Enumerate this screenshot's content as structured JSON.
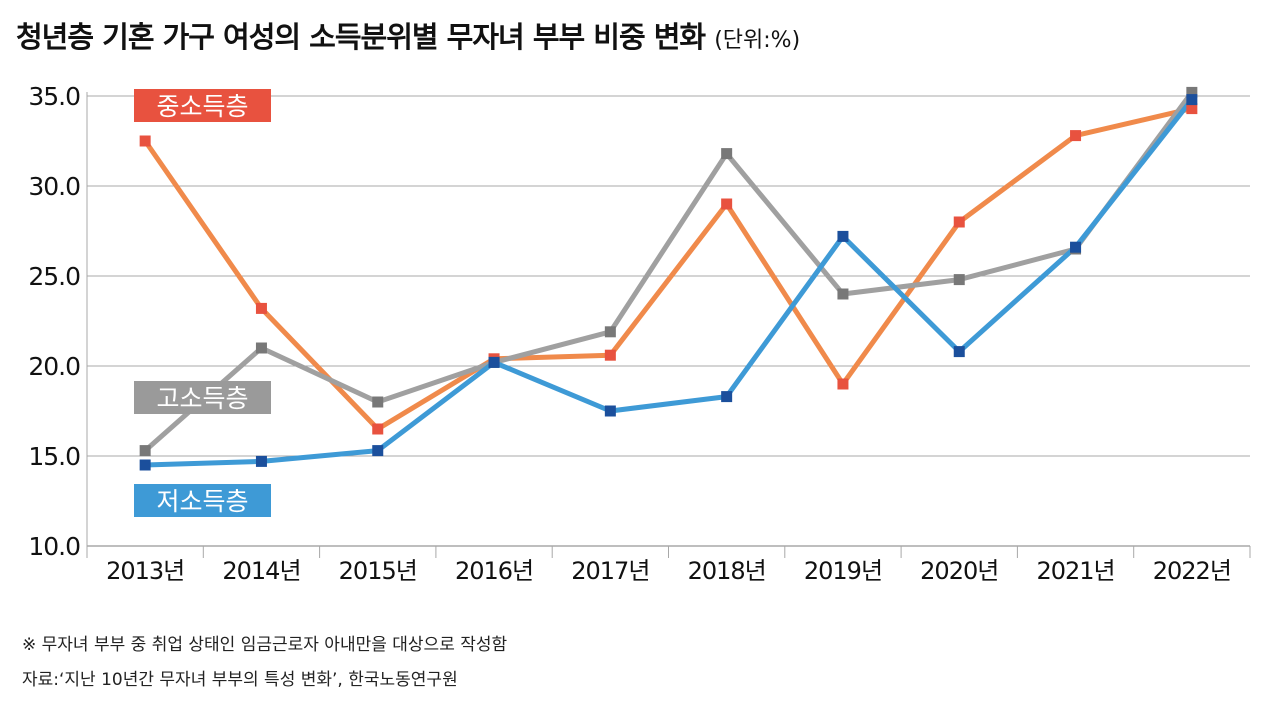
{
  "title": "청년층 기혼 가구 여성의 소득분위별 무자녀 부부 비중 변화",
  "unit": "(단위:%)",
  "notes": {
    "note1": "※ 무자녀 부부 중 취업 상태인 임금근로자 아내만을 대상으로 작성함",
    "note2": "자료:‘지난 10년간 무자녀 부부의 특성 변화’, 한국노동연구원"
  },
  "chart_data": {
    "type": "line",
    "categories": [
      "2013년",
      "2014년",
      "2015년",
      "2016년",
      "2017년",
      "2018년",
      "2019년",
      "2020년",
      "2021년",
      "2022년"
    ],
    "ylim": [
      10,
      35
    ],
    "yticks": [
      "10.0",
      "15.0",
      "20.0",
      "25.0",
      "30.0",
      "35.0"
    ],
    "ytick_values": [
      10,
      15,
      20,
      25,
      30,
      35
    ],
    "grid": true,
    "series": [
      {
        "name": "중소득층",
        "color": "#f08a4b",
        "marker_color": "#e8523f",
        "values": [
          32.5,
          23.2,
          16.5,
          20.4,
          20.6,
          29.0,
          19.0,
          28.0,
          32.8,
          34.3
        ]
      },
      {
        "name": "고소득층",
        "color": "#a0a0a0",
        "marker_color": "#787878",
        "values": [
          15.3,
          21.0,
          18.0,
          20.2,
          21.9,
          31.8,
          24.0,
          24.8,
          26.5,
          35.2
        ]
      },
      {
        "name": "저소득층",
        "color": "#3e9ad6",
        "marker_color": "#1b4f9c",
        "values": [
          14.5,
          14.7,
          15.3,
          20.2,
          17.5,
          18.3,
          27.2,
          20.8,
          26.6,
          34.8
        ]
      }
    ],
    "series_labels": [
      {
        "text": "중소득층",
        "bg": "#e8523f",
        "anchor": "upper-left"
      },
      {
        "text": "고소득층",
        "bg": "#9a9a9a",
        "anchor": "middle-left"
      },
      {
        "text": "저소득층",
        "bg": "#3e9ad6",
        "anchor": "lower-left"
      }
    ]
  }
}
